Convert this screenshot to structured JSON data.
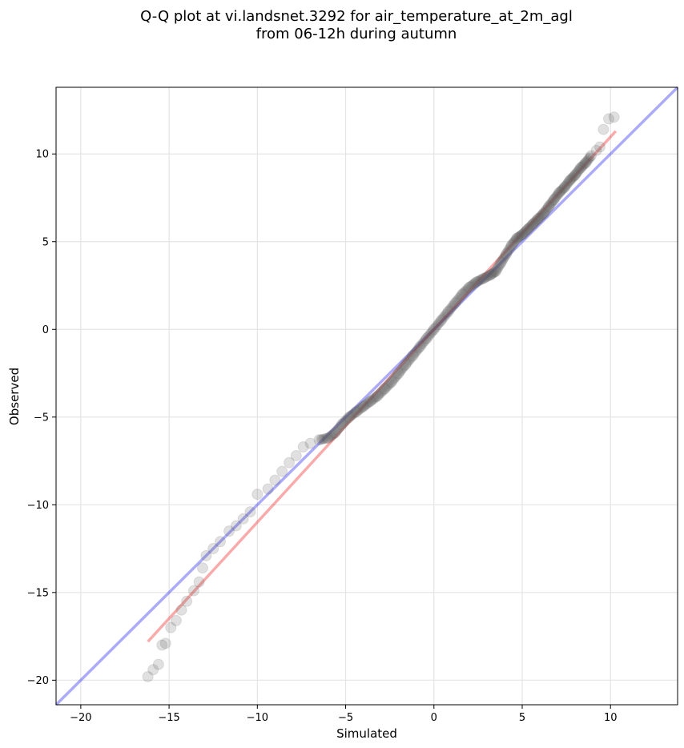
{
  "chart_data": {
    "type": "scatter",
    "title_line1": "Q-Q plot at vi.landsnet.3292 for air_temperature_at_2m_agl",
    "title_line2": "from 06-12h during autumn",
    "xlabel": "Simulated",
    "ylabel": "Observed",
    "xlim": [
      -21.4,
      13.8
    ],
    "ylim": [
      -21.4,
      13.8
    ],
    "xticks": [
      -20,
      -15,
      -10,
      -5,
      0,
      5,
      10
    ],
    "yticks": [
      -20,
      -15,
      -10,
      -5,
      0,
      5,
      10
    ],
    "xtick_labels": [
      "−20",
      "−15",
      "−10",
      "−5",
      "0",
      "5",
      "10"
    ],
    "ytick_labels": [
      "−20",
      "−15",
      "−10",
      "−5",
      "0",
      "5",
      "10"
    ],
    "grid": true,
    "point_color": "#555555",
    "quantiles": [
      [
        -16.2,
        -19.8
      ],
      [
        -15.9,
        -19.4
      ],
      [
        -15.6,
        -19.1
      ],
      [
        -15.4,
        -18.0
      ],
      [
        -15.2,
        -17.9
      ],
      [
        -14.9,
        -17.0
      ],
      [
        -14.6,
        -16.6
      ],
      [
        -14.3,
        -16.0
      ],
      [
        -14.0,
        -15.5
      ],
      [
        -13.6,
        -14.9
      ],
      [
        -13.3,
        -14.4
      ],
      [
        -13.1,
        -13.6
      ],
      [
        -12.9,
        -12.9
      ],
      [
        -12.5,
        -12.5
      ],
      [
        -12.1,
        -12.1
      ],
      [
        -11.6,
        -11.5
      ],
      [
        -11.2,
        -11.2
      ],
      [
        -10.8,
        -10.8
      ],
      [
        -10.4,
        -10.4
      ],
      [
        -10.0,
        -9.4
      ],
      [
        -9.4,
        -9.1
      ],
      [
        -9.0,
        -8.6
      ],
      [
        -8.6,
        -8.1
      ],
      [
        -8.2,
        -7.6
      ],
      [
        -7.8,
        -7.2
      ],
      [
        -7.4,
        -6.7
      ],
      [
        -7.0,
        -6.5
      ],
      [
        -6.5,
        -6.3
      ],
      [
        -6.0,
        -6.2
      ],
      [
        -5.6,
        -5.9
      ],
      [
        -5.2,
        -5.4
      ],
      [
        -4.8,
        -5.0
      ],
      [
        -4.4,
        -4.7
      ],
      [
        -4.0,
        -4.4
      ],
      [
        -3.6,
        -4.1
      ],
      [
        -3.2,
        -3.8
      ],
      [
        -2.8,
        -3.4
      ],
      [
        -2.4,
        -3.0
      ],
      [
        -2.0,
        -2.5
      ],
      [
        -1.6,
        -2.0
      ],
      [
        -1.2,
        -1.5
      ],
      [
        -0.8,
        -1.0
      ],
      [
        -0.4,
        -0.5
      ],
      [
        0.0,
        0.0
      ],
      [
        0.4,
        0.5
      ],
      [
        0.8,
        1.0
      ],
      [
        1.2,
        1.5
      ],
      [
        1.6,
        2.0
      ],
      [
        2.0,
        2.4
      ],
      [
        2.4,
        2.7
      ],
      [
        2.8,
        2.9
      ],
      [
        3.2,
        3.1
      ],
      [
        3.5,
        3.3
      ],
      [
        3.8,
        3.8
      ],
      [
        4.1,
        4.3
      ],
      [
        4.4,
        4.8
      ],
      [
        4.7,
        5.2
      ],
      [
        5.0,
        5.4
      ],
      [
        5.3,
        5.7
      ],
      [
        5.6,
        6.0
      ],
      [
        5.9,
        6.3
      ],
      [
        6.2,
        6.6
      ],
      [
        6.5,
        7.0
      ],
      [
        6.8,
        7.4
      ],
      [
        7.1,
        7.8
      ],
      [
        7.4,
        8.1
      ],
      [
        7.7,
        8.5
      ],
      [
        8.0,
        8.8
      ],
      [
        8.3,
        9.2
      ],
      [
        8.6,
        9.5
      ],
      [
        8.9,
        9.9
      ],
      [
        9.2,
        10.2
      ],
      [
        9.4,
        10.4
      ],
      [
        9.6,
        11.4
      ],
      [
        9.9,
        12.0
      ],
      [
        10.2,
        12.1
      ]
    ],
    "reference_line": {
      "from": [
        -21.4,
        -21.4
      ],
      "to": [
        13.8,
        13.8
      ],
      "color": "#0000ee"
    },
    "fit_line": {
      "from": [
        -16.2,
        -17.8
      ],
      "to": [
        10.3,
        11.3
      ],
      "color": "#ee2222"
    }
  }
}
